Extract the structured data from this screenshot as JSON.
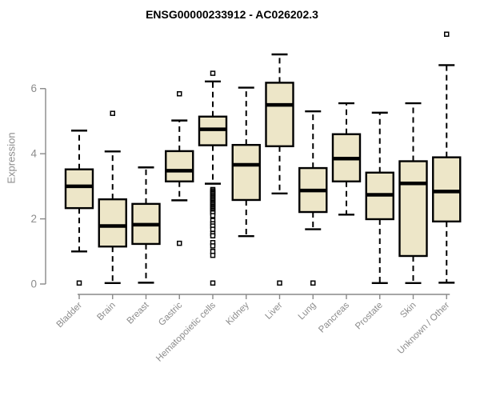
{
  "chart_data": {
    "type": "boxplot",
    "title": "ENSG00000233912 - AC026202.3",
    "ylabel": "Expression",
    "xlabel": "",
    "ylim": [
      0,
      6
    ],
    "yticks": [
      0,
      2,
      4,
      6
    ],
    "grid": false,
    "legend": "none",
    "colors": {
      "box_fill": "#EDE6C8",
      "box_stroke": "#000000",
      "median": "#000000",
      "whisker": "#000000",
      "axis": "#898989",
      "tick_label": "#8c8c8c",
      "title": "#000000",
      "background": "#ffffff"
    },
    "categories": [
      "Bladder",
      "Brain",
      "Breast",
      "Gastric",
      "Hematopoietic cells",
      "Kidney",
      "Liver",
      "Lung",
      "Pancreas",
      "Prostate",
      "Skin",
      "Unknown / Other"
    ],
    "series": [
      {
        "category": "Bladder",
        "whisker_low": 1.0,
        "q1": 2.33,
        "median": 3.0,
        "q3": 3.52,
        "whisker_high": 4.71,
        "outliers": [
          0.03
        ]
      },
      {
        "category": "Brain",
        "whisker_low": 0.03,
        "q1": 1.15,
        "median": 1.78,
        "q3": 2.6,
        "whisker_high": 4.07,
        "outliers": [
          5.24
        ]
      },
      {
        "category": "Breast",
        "whisker_low": 0.04,
        "q1": 1.23,
        "median": 1.82,
        "q3": 2.46,
        "whisker_high": 3.58,
        "outliers": []
      },
      {
        "category": "Gastric",
        "whisker_low": 2.57,
        "q1": 3.15,
        "median": 3.48,
        "q3": 4.08,
        "whisker_high": 5.02,
        "outliers": [
          5.84,
          1.25
        ]
      },
      {
        "category": "Hematopoietic cells",
        "whisker_low": 3.08,
        "q1": 4.26,
        "median": 4.75,
        "q3": 5.14,
        "whisker_high": 6.22,
        "outliers": [
          6.47,
          2.9,
          2.86,
          2.82,
          2.78,
          2.74,
          2.7,
          2.66,
          2.62,
          2.58,
          2.54,
          2.5,
          2.46,
          2.42,
          2.38,
          2.34,
          2.3,
          2.26,
          2.22,
          2.18,
          2.1,
          1.95,
          1.85,
          1.78,
          1.68,
          1.55,
          1.48,
          1.27,
          1.17,
          1.0,
          0.88,
          0.03
        ]
      },
      {
        "category": "Kidney",
        "whisker_low": 1.47,
        "q1": 2.58,
        "median": 3.66,
        "q3": 4.27,
        "whisker_high": 6.03,
        "outliers": []
      },
      {
        "category": "Liver",
        "whisker_low": 2.78,
        "q1": 4.23,
        "median": 5.5,
        "q3": 6.18,
        "whisker_high": 7.05,
        "outliers": [
          0.03
        ]
      },
      {
        "category": "Lung",
        "whisker_low": 1.68,
        "q1": 2.21,
        "median": 2.87,
        "q3": 3.56,
        "whisker_high": 5.3,
        "outliers": [
          0.03
        ]
      },
      {
        "category": "Pancreas",
        "whisker_low": 2.13,
        "q1": 3.15,
        "median": 3.85,
        "q3": 4.6,
        "whisker_high": 5.55,
        "outliers": []
      },
      {
        "category": "Prostate",
        "whisker_low": 0.03,
        "q1": 1.99,
        "median": 2.74,
        "q3": 3.42,
        "whisker_high": 5.26,
        "outliers": []
      },
      {
        "category": "Skin",
        "whisker_low": 0.03,
        "q1": 0.86,
        "median": 3.09,
        "q3": 3.77,
        "whisker_high": 5.55,
        "outliers": []
      },
      {
        "category": "Unknown / Other",
        "whisker_low": 0.04,
        "q1": 1.92,
        "median": 2.84,
        "q3": 3.89,
        "whisker_high": 6.72,
        "outliers": [
          7.67
        ]
      }
    ]
  }
}
